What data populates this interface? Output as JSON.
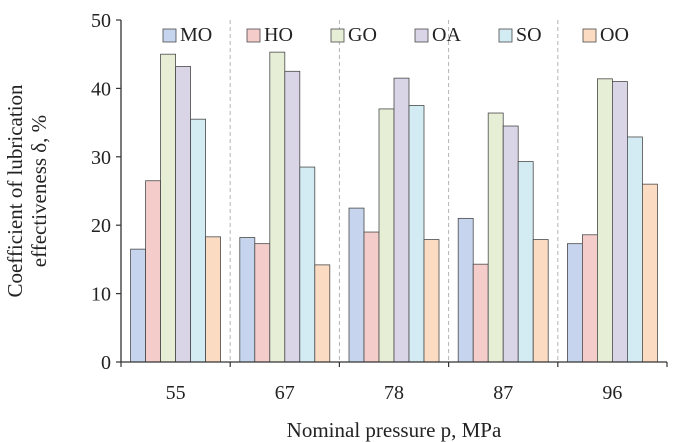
{
  "chart_data": {
    "type": "bar",
    "xlabel": "Nominal pressure p, MPa",
    "ylabel": [
      "Coefficient of lubrication",
      "effectiveness δ, %"
    ],
    "ylim": [
      0,
      50
    ],
    "yticks": [
      "0",
      "10",
      "20",
      "30",
      "40",
      "50"
    ],
    "categories": [
      "55",
      "67",
      "78",
      "87",
      "96"
    ],
    "grid": "vertical dashed between groups",
    "legend": "top",
    "series": [
      {
        "name": "MO",
        "values": [
          16.5,
          18.2,
          22.5,
          21.0,
          17.3
        ],
        "color": "#c6d4ee"
      },
      {
        "name": "HO",
        "values": [
          26.5,
          17.3,
          19.0,
          14.3,
          18.6
        ],
        "color": "#f4cdcb"
      },
      {
        "name": "GO",
        "values": [
          45.0,
          45.3,
          37.0,
          36.4,
          41.4
        ],
        "color": "#e6eed6"
      },
      {
        "name": "OA",
        "values": [
          43.2,
          42.5,
          41.5,
          34.5,
          41.0
        ],
        "color": "#d9d4e6"
      },
      {
        "name": "SO",
        "values": [
          35.5,
          28.5,
          37.5,
          29.3,
          32.9
        ],
        "color": "#d3ecf3"
      },
      {
        "name": "OO",
        "values": [
          18.3,
          14.2,
          17.9,
          17.9,
          26.0
        ],
        "color": "#fbdcc3"
      }
    ]
  }
}
